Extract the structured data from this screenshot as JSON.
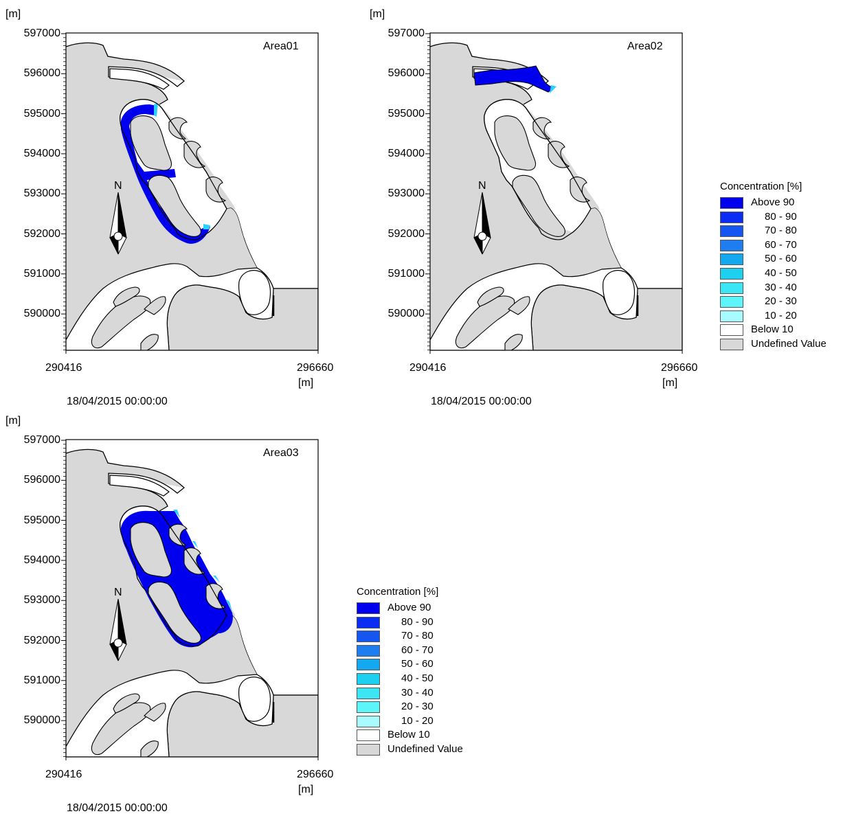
{
  "panels": [
    {
      "area_label": "Area01",
      "y_unit": "[m]",
      "y_ticks": [
        "597000",
        "596000",
        "595000",
        "594000",
        "593000",
        "592000",
        "591000",
        "590000"
      ],
      "x_min": "290416",
      "x_max": "296660",
      "x_unit": "[m]",
      "north_label": "N",
      "timestamp": "18/04/2015 00:00:00",
      "highlight": "area01"
    },
    {
      "area_label": "Area02",
      "y_unit": "[m]",
      "y_ticks": [
        "597000",
        "596000",
        "595000",
        "594000",
        "593000",
        "592000",
        "591000",
        "590000"
      ],
      "x_min": "290416",
      "x_max": "296660",
      "x_unit": "[m]",
      "north_label": "N",
      "timestamp": "18/04/2015 00:00:00",
      "highlight": "area02"
    },
    {
      "area_label": "Area03",
      "y_unit": "[m]",
      "y_ticks": [
        "597000",
        "596000",
        "595000",
        "594000",
        "593000",
        "592000",
        "591000",
        "590000"
      ],
      "x_min": "290416",
      "x_max": "296660",
      "x_unit": "[m]",
      "north_label": "N",
      "timestamp": "18/04/2015 00:00:00",
      "highlight": "area03"
    }
  ],
  "legend": {
    "title": "Concentration [%]",
    "items": [
      {
        "label": "Above 90",
        "color": "#0000ee"
      },
      {
        "label": "80 - 90",
        "color": "#0a2cf5"
      },
      {
        "label": "70 - 80",
        "color": "#1456f2"
      },
      {
        "label": "60 - 70",
        "color": "#1e7ef0"
      },
      {
        "label": "50 - 60",
        "color": "#14a8f0"
      },
      {
        "label": "40 - 50",
        "color": "#1ed0f0"
      },
      {
        "label": "30 - 40",
        "color": "#3ce6f5"
      },
      {
        "label": "20 - 30",
        "color": "#5cf6fa"
      },
      {
        "label": "10 - 20",
        "color": "#a8fcff"
      },
      {
        "label": "Below 10",
        "color": "#ffffff"
      },
      {
        "label": "Undefined Value",
        "color": "#d8d8d8"
      }
    ]
  },
  "colors": {
    "land": "#d8d8d8",
    "water": "#ffffff",
    "plume": "#0000ee",
    "plume_edge": "#2ad0ff"
  }
}
